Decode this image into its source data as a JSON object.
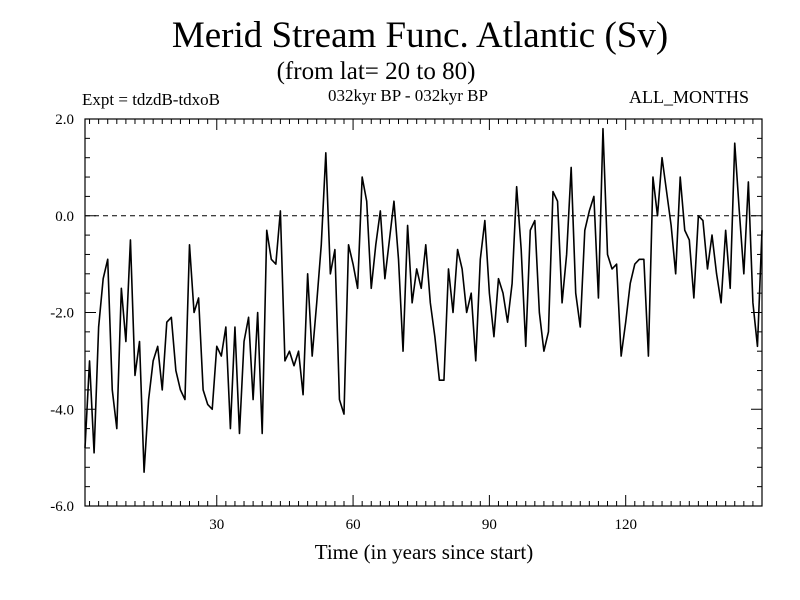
{
  "chart_data": {
    "type": "line",
    "title": "Merid Stream Func. Atlantic (Sv)",
    "subtitle": "(from lat= 20 to 80)",
    "annotations": {
      "left": "Expt = tdzdB-tdxoB",
      "center": "032kyr BP - 032kyr BP",
      "right": "ALL_MONTHS"
    },
    "xlabel": "Time (in years since start)",
    "ylabel": "",
    "xlim": [
      1,
      150
    ],
    "ylim": [
      -6.0,
      2.0
    ],
    "xticks": [
      30,
      60,
      90,
      120
    ],
    "xtick_labels": [
      "30",
      "60",
      "90",
      "120"
    ],
    "yticks": [
      -6.0,
      -4.0,
      -2.0,
      0.0,
      2.0
    ],
    "ytick_labels": [
      "-6.0",
      "-4.0",
      "-2.0",
      "0.0",
      "2.0"
    ],
    "reference_line": {
      "y": 0.0,
      "style": "dashed"
    },
    "series": [
      {
        "name": "Atlantic meridional stream function",
        "x_start": 1,
        "x_step": 1,
        "values": [
          -4.8,
          -3.0,
          -4.9,
          -2.3,
          -1.3,
          -0.9,
          -3.6,
          -4.4,
          -1.5,
          -2.6,
          -0.5,
          -3.3,
          -2.6,
          -5.3,
          -3.8,
          -3.0,
          -2.7,
          -3.6,
          -2.2,
          -2.1,
          -3.2,
          -3.6,
          -3.8,
          -0.6,
          -2.0,
          -1.7,
          -3.6,
          -3.9,
          -4.0,
          -2.7,
          -2.9,
          -2.3,
          -4.4,
          -2.3,
          -4.5,
          -2.6,
          -2.1,
          -3.8,
          -2.0,
          -4.5,
          -0.3,
          -0.9,
          -1.0,
          0.1,
          -3.0,
          -2.8,
          -3.1,
          -2.8,
          -3.7,
          -1.2,
          -2.9,
          -1.8,
          -0.6,
          1.3,
          -1.2,
          -0.7,
          -3.8,
          -4.1,
          -0.6,
          -1.0,
          -1.5,
          0.8,
          0.3,
          -1.5,
          -0.6,
          0.1,
          -1.3,
          -0.5,
          0.3,
          -0.9,
          -2.8,
          -0.2,
          -1.8,
          -1.1,
          -1.5,
          -0.6,
          -1.8,
          -2.5,
          -3.4,
          -3.4,
          -1.1,
          -2.0,
          -0.7,
          -1.1,
          -2.0,
          -1.6,
          -3.0,
          -0.9,
          -0.1,
          -1.6,
          -2.5,
          -1.3,
          -1.6,
          -2.2,
          -1.4,
          0.6,
          -0.7,
          -2.7,
          -0.3,
          -0.1,
          -2.0,
          -2.8,
          -2.4,
          0.5,
          0.3,
          -1.8,
          -0.8,
          1.0,
          -1.6,
          -2.3,
          -0.3,
          0.1,
          0.4,
          -1.7,
          1.8,
          -0.8,
          -1.1,
          -1.0,
          -2.9,
          -2.2,
          -1.4,
          -1.0,
          -0.9,
          -0.9,
          -2.9,
          0.8,
          0.0,
          1.2,
          0.5,
          -0.2,
          -1.2,
          0.8,
          -0.3,
          -0.5,
          -1.7,
          0.0,
          -0.1,
          -1.1,
          -0.4,
          -1.2,
          -1.8,
          -0.3,
          -1.5,
          1.5,
          0.1,
          -1.2,
          0.7,
          -1.8,
          -2.7,
          -0.3
        ]
      }
    ]
  }
}
